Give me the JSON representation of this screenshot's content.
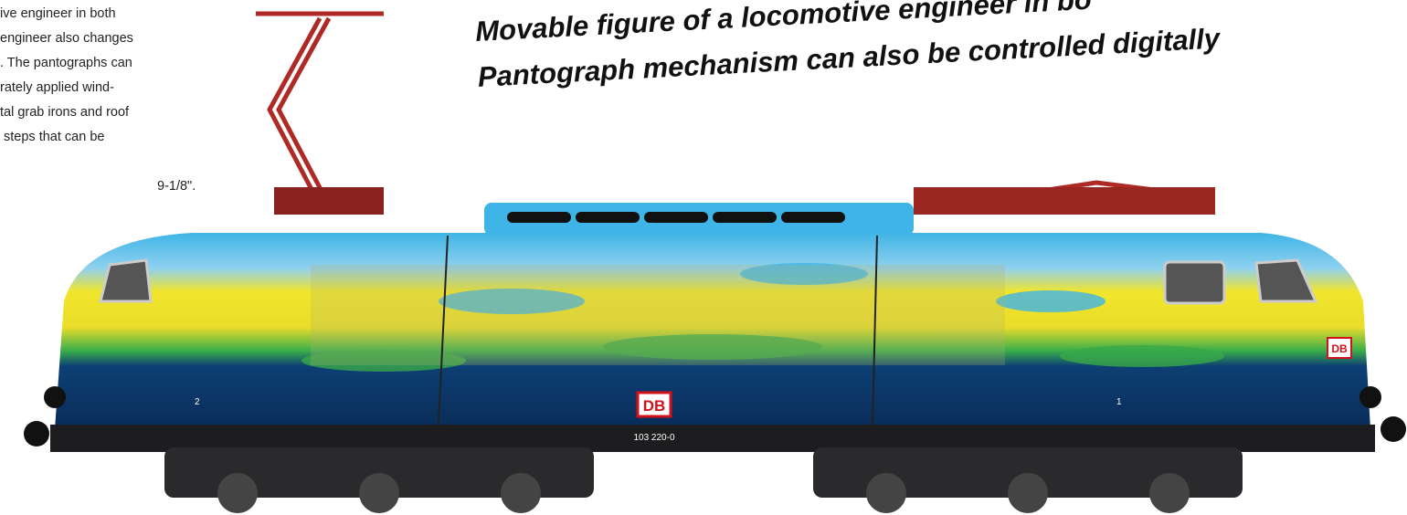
{
  "description": {
    "lines": [
      "ive engineer in both",
      "engineer also changes",
      ". The pantographs can",
      "rately applied wind-",
      "tal grab irons and roof",
      " steps that can be",
      "",
      "9-1/8\"."
    ]
  },
  "headline": {
    "lines": [
      "Movable figure of a locomotive engineer in bo",
      "Pantograph mechanism can also be controlled digitally"
    ]
  },
  "locomotive": {
    "logo": "DB",
    "number": "103 220-0",
    "end_numbers": [
      "2",
      "1"
    ],
    "front_logo": "DB"
  }
}
